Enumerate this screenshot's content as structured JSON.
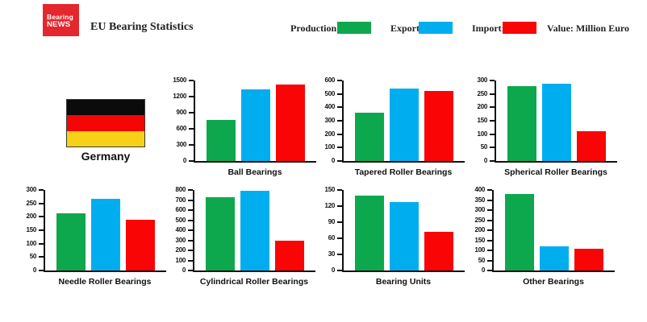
{
  "header": {
    "logo": {
      "line1": "Bearing",
      "line2": "NEWS",
      "bg_color": "#e4272d"
    },
    "title": "EU Bearing Statistics"
  },
  "legend": {
    "production_label": "Production:",
    "export_label": "Export:",
    "import_label": "Import:",
    "value_note": "Value: Million Euro"
  },
  "country": {
    "name": "Germany",
    "flag_colors": [
      "#0b0b0b",
      "#f60505",
      "#f7d117"
    ]
  },
  "chart_style": {
    "colors": {
      "Production": "#0da84e",
      "Export": "#00aeef",
      "Import": "#f90505"
    },
    "axis_color": "#101010",
    "legend_position": "top",
    "grid": false
  },
  "chart_data": [
    {
      "type": "bar",
      "title": "Ball Bearings",
      "xlabel": "",
      "ylabel": "",
      "ylim": [
        0,
        1500
      ],
      "ytick_step": 300,
      "categories": [
        "Production",
        "Export",
        "Import"
      ],
      "series": [
        {
          "name": "Production",
          "value": 770
        },
        {
          "name": "Export",
          "value": 1340
        },
        {
          "name": "Import",
          "value": 1430
        }
      ]
    },
    {
      "type": "bar",
      "title": "Tapered Roller Bearings",
      "xlabel": "",
      "ylabel": "",
      "ylim": [
        0,
        600
      ],
      "ytick_step": 100,
      "categories": [
        "Production",
        "Export",
        "Import"
      ],
      "series": [
        {
          "name": "Production",
          "value": 360
        },
        {
          "name": "Export",
          "value": 540
        },
        {
          "name": "Import",
          "value": 520
        }
      ]
    },
    {
      "type": "bar",
      "title": "Spherical Roller Bearings",
      "xlabel": "",
      "ylabel": "",
      "ylim": [
        0,
        300
      ],
      "ytick_step": 50,
      "categories": [
        "Production",
        "Export",
        "Import"
      ],
      "series": [
        {
          "name": "Production",
          "value": 280
        },
        {
          "name": "Export",
          "value": 287
        },
        {
          "name": "Import",
          "value": 112
        }
      ]
    },
    {
      "type": "bar",
      "title": "Needle Roller Bearings",
      "xlabel": "",
      "ylabel": "",
      "ylim": [
        0,
        300
      ],
      "ytick_step": 50,
      "categories": [
        "Production",
        "Export",
        "Import"
      ],
      "series": [
        {
          "name": "Production",
          "value": 213
        },
        {
          "name": "Export",
          "value": 268
        },
        {
          "name": "Import",
          "value": 190
        }
      ]
    },
    {
      "type": "bar",
      "title": "Cylindrical Roller Bearings",
      "xlabel": "",
      "ylabel": "",
      "ylim": [
        0,
        800
      ],
      "ytick_step": 100,
      "categories": [
        "Production",
        "Export",
        "Import"
      ],
      "series": [
        {
          "name": "Production",
          "value": 725
        },
        {
          "name": "Export",
          "value": 790
        },
        {
          "name": "Import",
          "value": 295
        }
      ]
    },
    {
      "type": "bar",
      "title": "Bearing Units",
      "xlabel": "",
      "ylabel": "",
      "ylim": [
        0,
        150
      ],
      "ytick_step": 30,
      "categories": [
        "Production",
        "Export",
        "Import"
      ],
      "series": [
        {
          "name": "Production",
          "value": 140
        },
        {
          "name": "Export",
          "value": 127
        },
        {
          "name": "Import",
          "value": 72
        }
      ]
    },
    {
      "type": "bar",
      "title": "Other Bearings",
      "xlabel": "",
      "ylabel": "",
      "ylim": [
        0,
        400
      ],
      "ytick_step": 50,
      "categories": [
        "Production",
        "Export",
        "Import"
      ],
      "series": [
        {
          "name": "Production",
          "value": 380
        },
        {
          "name": "Export",
          "value": 120
        },
        {
          "name": "Import",
          "value": 108
        }
      ]
    }
  ]
}
